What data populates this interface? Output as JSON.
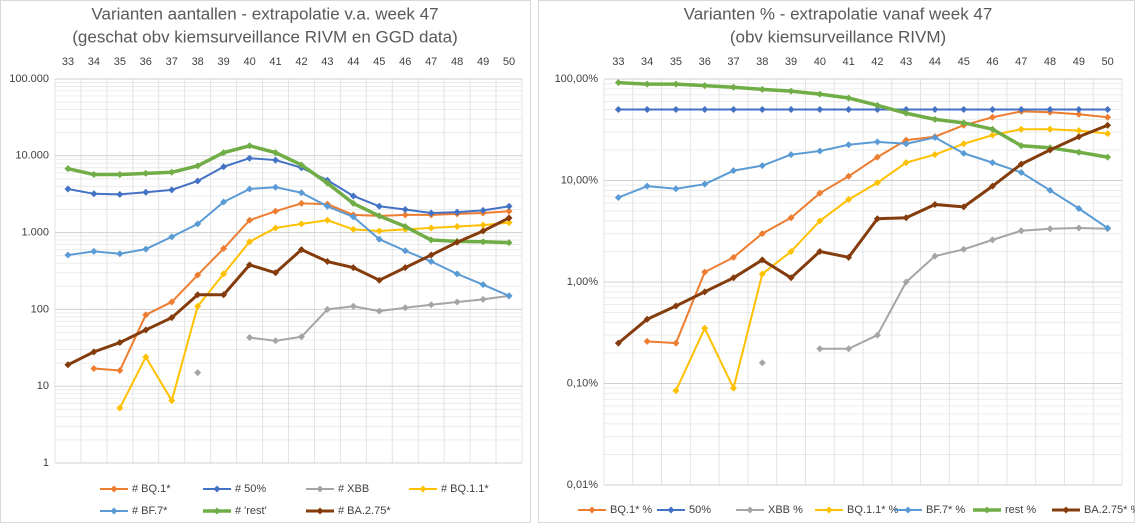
{
  "chart_data": [
    {
      "type": "line",
      "title": "Varianten aantallen - extrapolatie v.a. week 47",
      "subtitle": "(geschat obv kiemsurveillance RIVM en GGD data)",
      "categories": [
        33,
        34,
        35,
        36,
        37,
        38,
        39,
        40,
        41,
        42,
        43,
        44,
        45,
        46,
        47,
        48,
        49,
        50
      ],
      "log_scale": true,
      "grid": true,
      "legend": "bottom",
      "ylim": [
        1,
        100000
      ],
      "yticks": [
        1,
        10,
        100,
        {
          "value": 1000,
          "label": "1.000"
        },
        {
          "value": 10000,
          "label": "10.000"
        },
        {
          "value": 100000,
          "label": "100.000"
        }
      ],
      "series": [
        {
          "name": "# BQ.1*",
          "color": "#ed7d31",
          "width": 2,
          "values": [
            null,
            17,
            16,
            85,
            125,
            280,
            620,
            1450,
            1900,
            2400,
            2350,
            1700,
            1650,
            1700,
            1700,
            1750,
            1800,
            1900
          ]
        },
        {
          "name": "# 50%",
          "color": "#4472c4",
          "width": 2,
          "values": [
            3700,
            3200,
            3150,
            3350,
            3600,
            4700,
            7200,
            9300,
            8800,
            7000,
            4800,
            3000,
            2200,
            2000,
            1800,
            1850,
            1950,
            2200
          ]
        },
        {
          "name": "# XBB",
          "color": "#a5a5a5",
          "width": 2,
          "values": [
            null,
            null,
            null,
            null,
            null,
            15,
            null,
            43,
            39,
            44,
            100,
            110,
            95,
            105,
            115,
            125,
            135,
            150
          ]
        },
        {
          "name": "# BQ.1.1*",
          "color": "#ffc000",
          "width": 2,
          "values": [
            null,
            null,
            5.2,
            24,
            6.5,
            110,
            290,
            760,
            1150,
            1300,
            1450,
            1100,
            1050,
            1100,
            1150,
            1200,
            1250,
            1350
          ]
        },
        {
          "name": "# BF.7*",
          "color": "#5b9bd5",
          "width": 2,
          "values": [
            510,
            570,
            530,
            610,
            880,
            1300,
            2500,
            3700,
            3900,
            3300,
            2200,
            1600,
            820,
            580,
            420,
            290,
            210,
            150
          ]
        },
        {
          "name": "# 'rest'",
          "color": "#70ad47",
          "width": 3.5,
          "values": [
            6800,
            5700,
            5700,
            5900,
            6100,
            7400,
            11000,
            13500,
            11000,
            7600,
            4400,
            2400,
            1650,
            1200,
            800,
            770,
            760,
            740
          ]
        },
        {
          "name": "# BA.2.75*",
          "color": "#843c0c",
          "width": 3,
          "values": [
            19,
            28,
            37,
            54,
            78,
            155,
            155,
            380,
            300,
            600,
            420,
            350,
            240,
            350,
            510,
            750,
            1050,
            1550
          ]
        }
      ]
    },
    {
      "type": "line",
      "title": "Varianten % - extrapolatie vanaf week 47",
      "subtitle": "(obv kiemsurveillance RIVM)",
      "categories": [
        33,
        34,
        35,
        36,
        37,
        38,
        39,
        40,
        41,
        42,
        43,
        44,
        45,
        46,
        47,
        48,
        49,
        50
      ],
      "log_scale": true,
      "grid": true,
      "legend": "bottom",
      "ylim": [
        0.01,
        100
      ],
      "yticks": [
        {
          "value": 0.01,
          "label": "0,01%"
        },
        {
          "value": 0.1,
          "label": "0,10%"
        },
        {
          "value": 1,
          "label": "1,00%"
        },
        {
          "value": 10,
          "label": "10,00%"
        },
        {
          "value": 100,
          "label": "100,00%"
        }
      ],
      "series": [
        {
          "name": "BQ.1* %",
          "color": "#ed7d31",
          "width": 2,
          "values": [
            null,
            0.26,
            0.25,
            1.25,
            1.75,
            3.0,
            4.3,
            7.5,
            11,
            17,
            25,
            27,
            35,
            42,
            48,
            47,
            45,
            42
          ]
        },
        {
          "name": "50%",
          "color": "#4472c4",
          "width": 2,
          "values": [
            50,
            50,
            50,
            50,
            50,
            50,
            50,
            50,
            50,
            50,
            50,
            50,
            50,
            50,
            50,
            50,
            50,
            50
          ]
        },
        {
          "name": "XBB %",
          "color": "#a5a5a5",
          "width": 2,
          "values": [
            null,
            null,
            null,
            null,
            null,
            0.16,
            null,
            0.22,
            0.22,
            0.3,
            1.0,
            1.8,
            2.1,
            2.6,
            3.2,
            3.35,
            3.4,
            3.35
          ]
        },
        {
          "name": "BQ.1.1* %",
          "color": "#ffc000",
          "width": 2,
          "values": [
            null,
            null,
            0.085,
            0.35,
            0.09,
            1.2,
            2.0,
            4.0,
            6.5,
            9.5,
            15,
            18,
            23,
            28,
            32,
            32,
            31,
            29
          ]
        },
        {
          "name": "BF.7* %",
          "color": "#5b9bd5",
          "width": 2,
          "values": [
            6.8,
            8.8,
            8.3,
            9.2,
            12.5,
            14,
            18,
            19.5,
            22.5,
            24,
            23,
            26.5,
            18.5,
            15,
            12,
            8,
            5.3,
            3.4
          ]
        },
        {
          "name": "rest %",
          "color": "#70ad47",
          "width": 3.5,
          "values": [
            92,
            89,
            89,
            86,
            83,
            79,
            76,
            71,
            65,
            55,
            46,
            40,
            37,
            32,
            22,
            21,
            19,
            17
          ]
        },
        {
          "name": "BA.2.75* %",
          "color": "#843c0c",
          "width": 3,
          "values": [
            0.25,
            0.43,
            0.58,
            0.8,
            1.1,
            1.65,
            1.1,
            2.0,
            1.75,
            4.2,
            4.3,
            5.8,
            5.5,
            8.8,
            14.5,
            20,
            27,
            35
          ]
        }
      ]
    }
  ]
}
